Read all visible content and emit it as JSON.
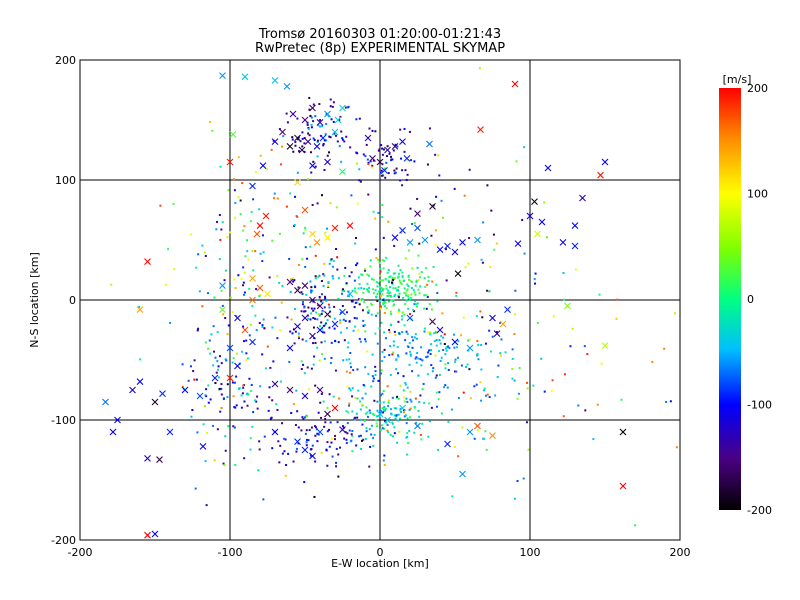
{
  "chart_data": {
    "type": "scatter",
    "title": "Tromsø 20160303 01:20:00-01:21:43",
    "subtitle": "RwPretec (8p) EXPERIMENTAL SKYMAP",
    "xlabel": "E-W location [km]",
    "ylabel": "N-S location [km]",
    "xlim": [
      -200,
      200
    ],
    "ylim": [
      -200,
      200
    ],
    "xticks": [
      "-200",
      "-100",
      "0",
      "100",
      "200"
    ],
    "yticks": [
      "-200",
      "-100",
      "0",
      "100",
      "200"
    ],
    "grid": true,
    "colorbar": {
      "label": "[m/s]",
      "range": [
        -200,
        200
      ],
      "ticks": [
        "200",
        "100",
        "0",
        "-100",
        "-200"
      ],
      "colormap": "rainbow (black-purple-blue-cyan-green-yellow-red)"
    },
    "markers": "small dots and crosses (x)",
    "crosses": [
      {
        "x": -105,
        "y": 187,
        "v": -60
      },
      {
        "x": -90,
        "y": 186,
        "v": -40
      },
      {
        "x": -70,
        "y": 183,
        "v": -45
      },
      {
        "x": -62,
        "y": 178,
        "v": -60
      },
      {
        "x": -58,
        "y": 155,
        "v": -140
      },
      {
        "x": -50,
        "y": 150,
        "v": -150
      },
      {
        "x": -45,
        "y": 160,
        "v": -160
      },
      {
        "x": -40,
        "y": 148,
        "v": -120
      },
      {
        "x": -35,
        "y": 155,
        "v": -60
      },
      {
        "x": -30,
        "y": 140,
        "v": -50
      },
      {
        "x": -28,
        "y": 150,
        "v": -40
      },
      {
        "x": -25,
        "y": 160,
        "v": -30
      },
      {
        "x": -55,
        "y": 135,
        "v": -180
      },
      {
        "x": -60,
        "y": 128,
        "v": -190
      },
      {
        "x": -52,
        "y": 125,
        "v": -170
      },
      {
        "x": -48,
        "y": 132,
        "v": -140
      },
      {
        "x": -42,
        "y": 128,
        "v": -110
      },
      {
        "x": -38,
        "y": 135,
        "v": -90
      },
      {
        "x": -65,
        "y": 140,
        "v": -150
      },
      {
        "x": -70,
        "y": 132,
        "v": -110
      },
      {
        "x": 90,
        "y": 180,
        "v": 200
      },
      {
        "x": 67,
        "y": 142,
        "v": 190
      },
      {
        "x": -100,
        "y": 115,
        "v": 190
      },
      {
        "x": -98,
        "y": 138,
        "v": 30
      },
      {
        "x": -35,
        "y": 115,
        "v": -120
      },
      {
        "x": -45,
        "y": 112,
        "v": -100
      },
      {
        "x": -5,
        "y": 118,
        "v": -150
      },
      {
        "x": 0,
        "y": 115,
        "v": -170
      },
      {
        "x": 5,
        "y": 125,
        "v": -130
      },
      {
        "x": 10,
        "y": 128,
        "v": -160
      },
      {
        "x": 15,
        "y": 132,
        "v": -110
      },
      {
        "x": 18,
        "y": 118,
        "v": -90
      },
      {
        "x": -8,
        "y": 135,
        "v": -130
      },
      {
        "x": 3,
        "y": 108,
        "v": -90
      },
      {
        "x": 33,
        "y": 130,
        "v": -70
      },
      {
        "x": -25,
        "y": 107,
        "v": 10
      },
      {
        "x": 112,
        "y": 110,
        "v": -110
      },
      {
        "x": 150,
        "y": 115,
        "v": -110
      },
      {
        "x": 147,
        "y": 104,
        "v": 190
      },
      {
        "x": -78,
        "y": 112,
        "v": -100
      },
      {
        "x": -85,
        "y": 95,
        "v": -90
      },
      {
        "x": -55,
        "y": 98,
        "v": 120
      },
      {
        "x": -80,
        "y": 62,
        "v": 200
      },
      {
        "x": -76,
        "y": 70,
        "v": 190
      },
      {
        "x": -82,
        "y": 55,
        "v": 170
      },
      {
        "x": -50,
        "y": 75,
        "v": 170
      },
      {
        "x": -45,
        "y": 55,
        "v": 120
      },
      {
        "x": -42,
        "y": 48,
        "v": 150
      },
      {
        "x": -35,
        "y": 52,
        "v": 110
      },
      {
        "x": -30,
        "y": 60,
        "v": 190
      },
      {
        "x": -20,
        "y": 62,
        "v": 200
      },
      {
        "x": 10,
        "y": 52,
        "v": -100
      },
      {
        "x": 15,
        "y": 58,
        "v": -90
      },
      {
        "x": 20,
        "y": 48,
        "v": -60
      },
      {
        "x": 25,
        "y": 60,
        "v": -80
      },
      {
        "x": 30,
        "y": 50,
        "v": -60
      },
      {
        "x": 40,
        "y": 42,
        "v": -100
      },
      {
        "x": 45,
        "y": 45,
        "v": -90
      },
      {
        "x": 50,
        "y": 40,
        "v": -110
      },
      {
        "x": 55,
        "y": 48,
        "v": -100
      },
      {
        "x": 65,
        "y": 50,
        "v": -60
      },
      {
        "x": 92,
        "y": 47,
        "v": -110
      },
      {
        "x": 103,
        "y": 82,
        "v": -190
      },
      {
        "x": 100,
        "y": 70,
        "v": -120
      },
      {
        "x": 108,
        "y": 65,
        "v": -100
      },
      {
        "x": 135,
        "y": 85,
        "v": -120
      },
      {
        "x": 130,
        "y": 62,
        "v": -100
      },
      {
        "x": 122,
        "y": 48,
        "v": -110
      },
      {
        "x": 130,
        "y": 45,
        "v": -90
      },
      {
        "x": 105,
        "y": 55,
        "v": 80
      },
      {
        "x": 52,
        "y": 22,
        "v": -200
      },
      {
        "x": 25,
        "y": 72,
        "v": -160
      },
      {
        "x": 35,
        "y": 78,
        "v": -180
      },
      {
        "x": -155,
        "y": 32,
        "v": 200
      },
      {
        "x": -160,
        "y": -8,
        "v": 140
      },
      {
        "x": -105,
        "y": 12,
        "v": -60
      },
      {
        "x": -105,
        "y": -8,
        "v": 40
      },
      {
        "x": -85,
        "y": 18,
        "v": 140
      },
      {
        "x": -80,
        "y": 10,
        "v": 170
      },
      {
        "x": -85,
        "y": 0,
        "v": 160
      },
      {
        "x": -75,
        "y": 5,
        "v": 110
      },
      {
        "x": -60,
        "y": 15,
        "v": -150
      },
      {
        "x": -55,
        "y": 8,
        "v": -170
      },
      {
        "x": -50,
        "y": 12,
        "v": -160
      },
      {
        "x": -45,
        "y": 0,
        "v": -140
      },
      {
        "x": -40,
        "y": -5,
        "v": -150
      },
      {
        "x": -35,
        "y": -12,
        "v": -170
      },
      {
        "x": -50,
        "y": -15,
        "v": -130
      },
      {
        "x": -55,
        "y": -22,
        "v": -120
      },
      {
        "x": -45,
        "y": -30,
        "v": -130
      },
      {
        "x": -40,
        "y": -25,
        "v": -100
      },
      {
        "x": -30,
        "y": -20,
        "v": -90
      },
      {
        "x": -25,
        "y": -10,
        "v": -80
      },
      {
        "x": -20,
        "y": 5,
        "v": -50
      },
      {
        "x": -60,
        "y": -40,
        "v": -110
      },
      {
        "x": -90,
        "y": -25,
        "v": 170
      },
      {
        "x": -95,
        "y": -15,
        "v": -120
      },
      {
        "x": -85,
        "y": -35,
        "v": -90
      },
      {
        "x": -100,
        "y": -40,
        "v": -80
      },
      {
        "x": -95,
        "y": -55,
        "v": -100
      },
      {
        "x": -100,
        "y": -65,
        "v": 190
      },
      {
        "x": -110,
        "y": -65,
        "v": -90
      },
      {
        "x": 20,
        "y": -15,
        "v": -80
      },
      {
        "x": 35,
        "y": -18,
        "v": -160
      },
      {
        "x": 40,
        "y": -25,
        "v": -130
      },
      {
        "x": 50,
        "y": -35,
        "v": -100
      },
      {
        "x": 60,
        "y": -40,
        "v": -60
      },
      {
        "x": 75,
        "y": -15,
        "v": -110
      },
      {
        "x": 78,
        "y": -28,
        "v": -130
      },
      {
        "x": 82,
        "y": -20,
        "v": 140
      },
      {
        "x": 85,
        "y": -8,
        "v": -90
      },
      {
        "x": 125,
        "y": -5,
        "v": 50
      },
      {
        "x": 150,
        "y": -38,
        "v": 70
      },
      {
        "x": -183,
        "y": -85,
        "v": -70
      },
      {
        "x": -178,
        "y": -110,
        "v": -110
      },
      {
        "x": -175,
        "y": -100,
        "v": -100
      },
      {
        "x": -165,
        "y": -75,
        "v": -120
      },
      {
        "x": -160,
        "y": -68,
        "v": -100
      },
      {
        "x": -150,
        "y": -85,
        "v": -180
      },
      {
        "x": -145,
        "y": -78,
        "v": -90
      },
      {
        "x": -140,
        "y": -110,
        "v": -90
      },
      {
        "x": -130,
        "y": -75,
        "v": -100
      },
      {
        "x": -120,
        "y": -80,
        "v": -80
      },
      {
        "x": -118,
        "y": -122,
        "v": -110
      },
      {
        "x": -155,
        "y": -132,
        "v": -120
      },
      {
        "x": -147,
        "y": -133,
        "v": -170
      },
      {
        "x": -155,
        "y": -196,
        "v": 200
      },
      {
        "x": -150,
        "y": -195,
        "v": -100
      },
      {
        "x": -70,
        "y": -70,
        "v": -140
      },
      {
        "x": -60,
        "y": -75,
        "v": -160
      },
      {
        "x": -50,
        "y": -80,
        "v": -120
      },
      {
        "x": -40,
        "y": -75,
        "v": -150
      },
      {
        "x": -35,
        "y": -95,
        "v": -170
      },
      {
        "x": -30,
        "y": -90,
        "v": 200
      },
      {
        "x": -25,
        "y": -108,
        "v": -110
      },
      {
        "x": -40,
        "y": -110,
        "v": -80
      },
      {
        "x": -55,
        "y": -118,
        "v": -90
      },
      {
        "x": -70,
        "y": -110,
        "v": -100
      },
      {
        "x": -45,
        "y": -130,
        "v": -110
      },
      {
        "x": -50,
        "y": -125,
        "v": -90
      },
      {
        "x": 0,
        "y": -95,
        "v": -50
      },
      {
        "x": 5,
        "y": -100,
        "v": -40
      },
      {
        "x": 15,
        "y": -90,
        "v": -30
      },
      {
        "x": 25,
        "y": -105,
        "v": -70
      },
      {
        "x": 45,
        "y": -120,
        "v": -90
      },
      {
        "x": 60,
        "y": -110,
        "v": -60
      },
      {
        "x": 65,
        "y": -105,
        "v": 170
      },
      {
        "x": 75,
        "y": -113,
        "v": 150
      },
      {
        "x": 162,
        "y": -110,
        "v": -200
      },
      {
        "x": 162,
        "y": -155,
        "v": 200
      },
      {
        "x": 55,
        "y": -145,
        "v": -60
      }
    ],
    "dot_clusters": [
      {
        "cx": -42,
        "cy": 140,
        "sx": 14,
        "sy": 14,
        "n": 90,
        "vmin": -190,
        "vmax": -40
      },
      {
        "cx": 5,
        "cy": 118,
        "sx": 12,
        "sy": 13,
        "n": 60,
        "vmin": -180,
        "vmax": -70
      },
      {
        "cx": 5,
        "cy": 8,
        "sx": 14,
        "sy": 12,
        "n": 200,
        "vmin": -30,
        "vmax": 40
      },
      {
        "cx": -40,
        "cy": -10,
        "sx": 18,
        "sy": 22,
        "n": 150,
        "vmin": -170,
        "vmax": -20
      },
      {
        "cx": 30,
        "cy": -45,
        "sx": 28,
        "sy": 14,
        "n": 140,
        "vmin": -90,
        "vmax": -20
      },
      {
        "cx": 5,
        "cy": -95,
        "sx": 16,
        "sy": 12,
        "n": 120,
        "vmin": -80,
        "vmax": 20
      },
      {
        "cx": -40,
        "cy": -115,
        "sx": 20,
        "sy": 14,
        "n": 100,
        "vmin": -160,
        "vmax": -70
      },
      {
        "cx": -100,
        "cy": -75,
        "sx": 18,
        "sy": 28,
        "n": 90,
        "vmin": -150,
        "vmax": 0
      },
      {
        "cx": -90,
        "cy": 40,
        "sx": 20,
        "sy": 45,
        "n": 80,
        "vmin": -140,
        "vmax": 160
      },
      {
        "cx": 0,
        "cy": 40,
        "sx": 50,
        "sy": 45,
        "n": 140,
        "vmin": -200,
        "vmax": 200
      },
      {
        "cx": 70,
        "cy": -70,
        "sx": 60,
        "sy": 55,
        "n": 110,
        "vmin": -140,
        "vmax": 200
      },
      {
        "cx": -20,
        "cy": -50,
        "sx": 60,
        "sy": 60,
        "n": 160,
        "vmin": -200,
        "vmax": 200
      }
    ]
  }
}
